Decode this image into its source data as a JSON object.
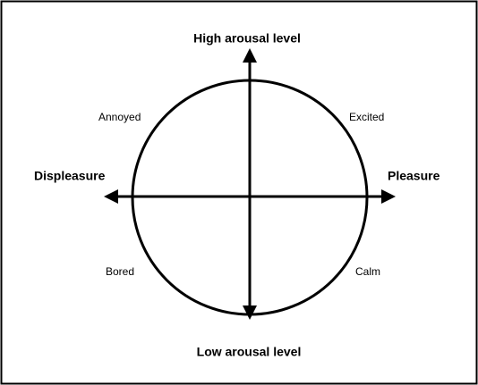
{
  "axes": {
    "top": "High arousal level",
    "bottom": "Low arousal level",
    "left": "Displeasure",
    "right": "Pleasure"
  },
  "quadrants": {
    "top_left": "Annoyed",
    "top_right": "Excited",
    "bottom_left": "Bored",
    "bottom_right": "Calm"
  }
}
